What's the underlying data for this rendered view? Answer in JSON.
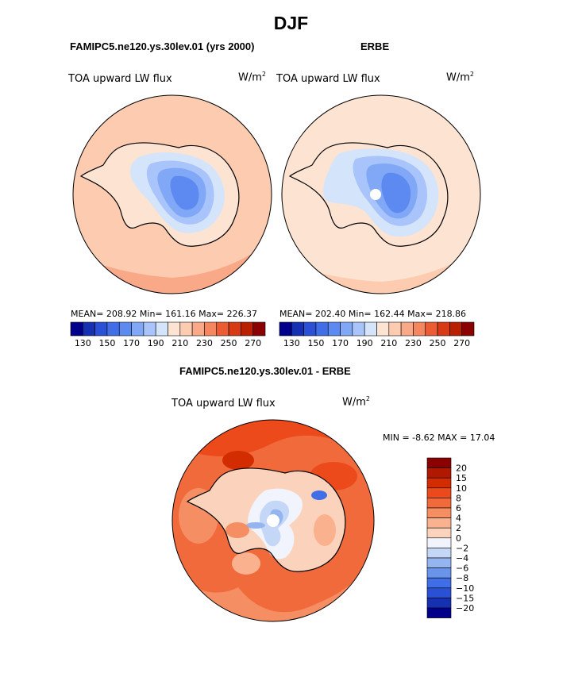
{
  "season": "DJF",
  "chart_data": [
    {
      "type": "heatmap",
      "projection": "south-polar-stereographic",
      "title": "FAMIPC5.ne120.ys.30lev.01 (yrs 2000)",
      "variable": "TOA upward LW flux",
      "units": "W/m",
      "units_exp": "2",
      "stats": {
        "mean": 208.92,
        "min": 161.16,
        "max": 226.37
      },
      "stats_text": "MEAN= 208.92  Min= 161.16  Max= 226.37",
      "colorbar": {
        "levels": [
          130,
          140,
          150,
          160,
          170,
          180,
          190,
          200,
          210,
          220,
          230,
          240,
          250,
          260,
          270
        ],
        "tick_labels": [
          "130",
          "150",
          "170",
          "190",
          "210",
          "230",
          "250",
          "270"
        ],
        "colors": [
          "#00008b",
          "#1530b0",
          "#2a50d6",
          "#3f6ee6",
          "#5c8af0",
          "#80a8f6",
          "#a8c4fa",
          "#d4e4fb",
          "#fde3d2",
          "#fccbb0",
          "#f9a987",
          "#f58760",
          "#ec5c34",
          "#d83a16",
          "#b82000",
          "#8b0000"
        ]
      }
    },
    {
      "type": "heatmap",
      "projection": "south-polar-stereographic",
      "title": "ERBE",
      "variable": "TOA upward LW flux",
      "units": "W/m",
      "units_exp": "2",
      "stats": {
        "mean": 202.4,
        "min": 162.44,
        "max": 218.86
      },
      "stats_text": "MEAN= 202.40  Min= 162.44  Max= 218.86",
      "colorbar": {
        "levels": [
          130,
          140,
          150,
          160,
          170,
          180,
          190,
          200,
          210,
          220,
          230,
          240,
          250,
          260,
          270
        ],
        "tick_labels": [
          "130",
          "150",
          "170",
          "190",
          "210",
          "230",
          "250",
          "270"
        ],
        "colors": [
          "#00008b",
          "#1530b0",
          "#2a50d6",
          "#3f6ee6",
          "#5c8af0",
          "#80a8f6",
          "#a8c4fa",
          "#d4e4fb",
          "#fde3d2",
          "#fccbb0",
          "#f9a987",
          "#f58760",
          "#ec5c34",
          "#d83a16",
          "#b82000",
          "#8b0000"
        ]
      }
    },
    {
      "type": "heatmap",
      "projection": "south-polar-stereographic",
      "title": "FAMIPC5.ne120.ys.30lev.01 - ERBE",
      "variable": "TOA upward LW flux",
      "units": "W/m",
      "units_exp": "2",
      "stats": {
        "min": -8.62,
        "max": 17.04
      },
      "minmax_text": "MIN =  -8.62 MAX =  17.04",
      "colorbar": {
        "levels": [
          20,
          15,
          10,
          8,
          6,
          4,
          2,
          0,
          -2,
          -4,
          -6,
          -8,
          -10,
          -15,
          -20
        ],
        "tick_labels": [
          "20",
          "15",
          "10",
          "8",
          "6",
          "4",
          "2",
          "0",
          "−2",
          "−4",
          "−6",
          "−8",
          "−10",
          "−15",
          "−20"
        ],
        "colors": [
          "#8b0000",
          "#b01800",
          "#d22c00",
          "#ec4a1a",
          "#f06a3c",
          "#f58e62",
          "#f9b18e",
          "#fbd3bd",
          "#f2f4fd",
          "#c5d7f6",
          "#95b5f0",
          "#6a93ea",
          "#3f6ee6",
          "#2a50d6",
          "#1530b0",
          "#00008b"
        ]
      }
    }
  ]
}
